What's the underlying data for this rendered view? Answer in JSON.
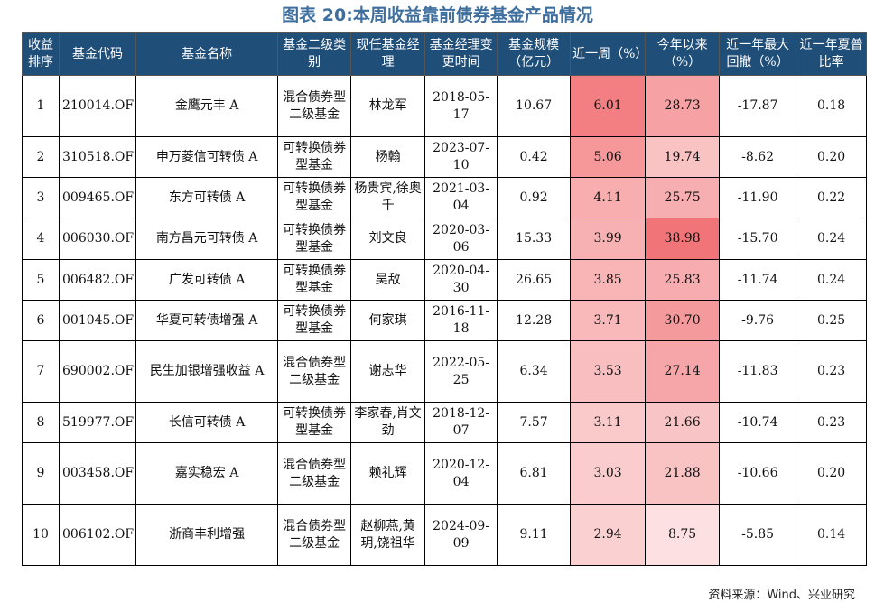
{
  "title": "图表 20:本周收益靠前债券基金产品情况",
  "source": "资料来源：Wind、兴业研究",
  "headers": [
    "收益排序",
    "基金代码",
    "基金名称",
    "基金二级类别",
    "现任基金经理",
    "基金经理变更时间",
    "基金规模（亿元）",
    "近一周（%）",
    "今年以来（%）",
    "近一年最大回撤（%）",
    "近一年夏普比率"
  ],
  "rows": [
    {
      "rank": "1",
      "code": "210014.OF",
      "name": "金鹰元丰 A",
      "category": "混合债券型二级基金",
      "manager": "林龙军",
      "change_date": "2018-05-17",
      "size": "10.67",
      "week": "6.01",
      "ytd": "28.73",
      "drawdown": "-17.87",
      "sharpe": "0.18"
    },
    {
      "rank": "2",
      "code": "310518.OF",
      "name": "申万菱信可转债 A",
      "category": "可转换债券型基金",
      "manager": "杨翰",
      "change_date": "2023-07-10",
      "size": "0.42",
      "week": "5.06",
      "ytd": "19.74",
      "drawdown": "-8.62",
      "sharpe": "0.20"
    },
    {
      "rank": "3",
      "code": "009465.OF",
      "name": "东方可转债 A",
      "category": "可转换债券型基金",
      "manager": "杨贵宾,徐奥千",
      "change_date": "2021-03-04",
      "size": "0.92",
      "week": "4.11",
      "ytd": "25.75",
      "drawdown": "-11.90",
      "sharpe": "0.22"
    },
    {
      "rank": "4",
      "code": "006030.OF",
      "name": "南方昌元可转债 A",
      "category": "可转换债券型基金",
      "manager": "刘文良",
      "change_date": "2020-03-06",
      "size": "15.33",
      "week": "3.99",
      "ytd": "38.98",
      "drawdown": "-15.70",
      "sharpe": "0.24"
    },
    {
      "rank": "5",
      "code": "006482.OF",
      "name": "广发可转债 A",
      "category": "可转换债券型基金",
      "manager": "吴敌",
      "change_date": "2020-04-30",
      "size": "26.65",
      "week": "3.85",
      "ytd": "25.83",
      "drawdown": "-11.74",
      "sharpe": "0.24"
    },
    {
      "rank": "6",
      "code": "001045.OF",
      "name": "华夏可转债增强 A",
      "category": "可转换债券型基金",
      "manager": "何家琪",
      "change_date": "2016-11-18",
      "size": "12.28",
      "week": "3.71",
      "ytd": "30.70",
      "drawdown": "-9.76",
      "sharpe": "0.25"
    },
    {
      "rank": "7",
      "code": "690002.OF",
      "name": "民生加银增强收益 A",
      "category": "混合债券型二级基金",
      "manager": "谢志华",
      "change_date": "2022-05-25",
      "size": "6.34",
      "week": "3.53",
      "ytd": "27.14",
      "drawdown": "-11.83",
      "sharpe": "0.23"
    },
    {
      "rank": "8",
      "code": "519977.OF",
      "name": "长信可转债 A",
      "category": "可转换债券型基金",
      "manager": "李家春,肖文劲",
      "change_date": "2018-12-07",
      "size": "7.57",
      "week": "3.11",
      "ytd": "21.66",
      "drawdown": "-10.74",
      "sharpe": "0.23"
    },
    {
      "rank": "9",
      "code": "003458.OF",
      "name": "嘉实稳宏 A",
      "category": "混合债券型二级基金",
      "manager": "赖礼辉",
      "change_date": "2020-12-04",
      "size": "6.81",
      "week": "3.03",
      "ytd": "21.88",
      "drawdown": "-10.66",
      "sharpe": "0.20"
    },
    {
      "rank": "10",
      "code": "006102.OF",
      "name": "浙商丰利增强",
      "category": "混合债券型二级基金",
      "manager": "赵柳燕,黄玥,饶祖华",
      "change_date": "2024-09-09",
      "size": "9.11",
      "week": "2.94",
      "ytd": "8.75",
      "drawdown": "-5.85",
      "sharpe": "0.14"
    }
  ],
  "week_colors": [
    "#f47f82",
    "#f69799",
    "#f8aeaf",
    "#f8b1b2",
    "#f9b5b6",
    "#f9b9ba",
    "#f9bebf",
    "#fac9ca",
    "#facccd",
    "#fbd0d1"
  ],
  "ytd_colors": [
    "#f6a1a3",
    "#f9c2c3",
    "#f7aeb0",
    "#f17478",
    "#f7adaf",
    "#f59a9c",
    "#f6a6a8",
    "#f9c4c5",
    "#f9c3c4",
    "#fde0e1"
  ]
}
